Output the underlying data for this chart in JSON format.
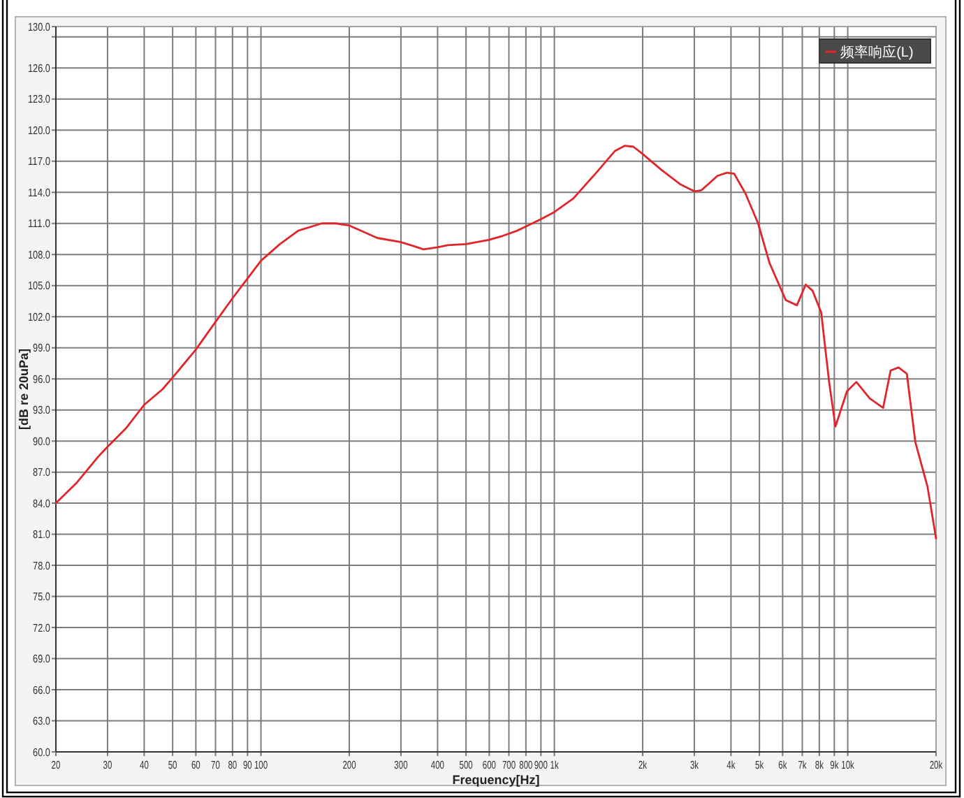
{
  "chart_data": {
    "type": "line",
    "xlabel": "Frequency[Hz]",
    "ylabel": "[dB re 20uPa]",
    "log": "x",
    "grid": true,
    "legend": "top right",
    "line_style": "solid",
    "x": [
      20,
      23.6,
      27.9,
      29.9,
      34.6,
      40,
      46.2,
      49.9,
      59.9,
      70,
      80.1,
      89.5,
      100,
      116,
      134,
      161,
      180,
      200,
      249,
      299,
      333,
      358,
      400,
      433,
      499,
      597,
      667,
      747,
      899,
      1000,
      1160,
      1390,
      1610,
      1740,
      1860,
      2000,
      2310,
      2680,
      3000,
      3170,
      3600,
      3880,
      4100,
      4480,
      4950,
      5410,
      6150,
      6710,
      7190,
      7590,
      8120,
      8640,
      9080,
      9940,
      10700,
      11900,
      13200,
      14000,
      14900,
      15900,
      17000,
      18700,
      20000
    ],
    "series": [
      {
        "name": "频率响应(L)",
        "color": "#e0262b",
        "values": [
          84.0,
          86.0,
          88.5,
          89.4,
          91.2,
          93.5,
          95.0,
          96.1,
          98.8,
          101.5,
          103.8,
          105.6,
          107.4,
          109.0,
          110.3,
          111.0,
          111.0,
          110.8,
          109.6,
          109.2,
          108.8,
          108.5,
          108.7,
          108.9,
          109.0,
          109.4,
          109.8,
          110.3,
          111.4,
          112.1,
          113.4,
          115.9,
          118.0,
          118.5,
          118.4,
          117.7,
          116.2,
          114.8,
          114.1,
          114.2,
          115.6,
          115.9,
          115.8,
          113.9,
          111.0,
          107.2,
          103.6,
          103.1,
          105.1,
          104.5,
          102.4,
          95.7,
          91.4,
          94.8,
          95.7,
          94.1,
          93.2,
          96.8,
          97.1,
          96.5,
          89.9,
          85.6,
          80.6
        ]
      }
    ],
    "xlim": [
      20,
      20000
    ],
    "xticks": [
      20,
      30,
      40,
      50,
      60,
      70,
      80,
      90,
      100,
      200,
      300,
      400,
      500,
      600,
      700,
      800,
      900,
      {
        "value": 1000,
        "label": "1k"
      },
      {
        "value": 2000,
        "label": "2k"
      },
      {
        "value": 3000,
        "label": "3k"
      },
      {
        "value": 4000,
        "label": "4k"
      },
      {
        "value": 5000,
        "label": "5k"
      },
      {
        "value": 6000,
        "label": "6k"
      },
      {
        "value": 7000,
        "label": "7k"
      },
      {
        "value": 8000,
        "label": "8k"
      },
      {
        "value": 9000,
        "label": "9k"
      },
      {
        "value": 10000,
        "label": "10k"
      },
      {
        "value": 20000,
        "label": "20k"
      }
    ],
    "ylim": [
      60,
      130
    ],
    "yticks": [
      {
        "value": 60,
        "label": "60.0"
      },
      {
        "value": 63,
        "label": "63.0"
      },
      {
        "value": 66,
        "label": "66.0"
      },
      {
        "value": 69,
        "label": "69.0"
      },
      {
        "value": 72,
        "label": "72.0"
      },
      {
        "value": 75,
        "label": "75.0"
      },
      {
        "value": 78,
        "label": "78.0"
      },
      {
        "value": 81,
        "label": "81.0"
      },
      {
        "value": 84,
        "label": "84.0"
      },
      {
        "value": 87,
        "label": "87.0"
      },
      {
        "value": 90,
        "label": "90.0"
      },
      {
        "value": 93,
        "label": "93.0"
      },
      {
        "value": 96,
        "label": "96.0"
      },
      {
        "value": 99,
        "label": "99.0"
      },
      {
        "value": 102,
        "label": "102.0"
      },
      {
        "value": 105,
        "label": "105.0"
      },
      {
        "value": 108,
        "label": "108.0"
      },
      {
        "value": 111,
        "label": "111.0"
      },
      {
        "value": 114,
        "label": "114.0"
      },
      {
        "value": 117,
        "label": "117.0"
      },
      {
        "value": 120,
        "label": "120.0"
      },
      {
        "value": 123,
        "label": "123.0"
      },
      {
        "value": 126,
        "label": "126.0"
      },
      {
        "value": 129,
        "label": null
      },
      {
        "value": 130,
        "label": "130.0"
      }
    ]
  }
}
